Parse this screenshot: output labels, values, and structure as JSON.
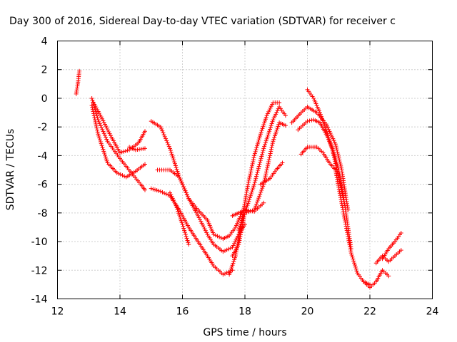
{
  "chart_data": {
    "type": "scatter",
    "title": "Day 300 of 2016, Sidereal Day-to-day VTEC variation (SDTVAR) for receiver c",
    "xlabel": "GPS time / hours",
    "ylabel": "SDTVAR / TECUs",
    "xlim": [
      12,
      24
    ],
    "ylim": [
      -14,
      4
    ],
    "xticks": [
      "12",
      "14",
      "16",
      "18",
      "20",
      "22",
      "24"
    ],
    "yticks": [
      "4",
      "2",
      "0",
      "-2",
      "-4",
      "-6",
      "-8",
      "-10",
      "-12",
      "-14"
    ],
    "grid": true,
    "marker": "plus",
    "color": "#ff0000",
    "series": [
      {
        "x": [
          12.6,
          12.65,
          12.7
        ],
        "y": [
          0.3,
          1.0,
          1.9
        ]
      },
      {
        "x": [
          13.1,
          13.3,
          13.6,
          14.0,
          14.4,
          14.7,
          14.8
        ],
        "y": [
          0.0,
          -1.5,
          -3.0,
          -4.2,
          -5.3,
          -6.1,
          -6.4
        ]
      },
      {
        "x": [
          13.1,
          13.3,
          13.6,
          13.9,
          14.2,
          14.5,
          14.8
        ],
        "y": [
          -0.5,
          -2.5,
          -4.5,
          -5.2,
          -5.5,
          -5.1,
          -4.6
        ]
      },
      {
        "x": [
          13.15,
          13.4,
          13.7,
          14.0,
          14.3,
          14.6,
          14.8
        ],
        "y": [
          -0.3,
          -1.3,
          -2.6,
          -3.8,
          -3.6,
          -3.1,
          -2.3
        ]
      },
      {
        "x": [
          14.3,
          14.5,
          14.8
        ],
        "y": [
          -3.4,
          -3.6,
          -3.5
        ]
      },
      {
        "x": [
          15.0,
          15.3,
          15.6,
          15.9,
          16.2,
          16.5,
          16.8,
          17.0,
          17.3,
          17.5,
          17.7,
          17.9
        ],
        "y": [
          -1.6,
          -2.0,
          -3.5,
          -5.5,
          -7.0,
          -7.8,
          -8.5,
          -9.5,
          -9.8,
          -9.6,
          -9.0,
          -8.0
        ]
      },
      {
        "x": [
          15.2,
          15.6,
          15.9,
          16.2,
          16.5,
          16.8,
          17.0,
          17.3,
          17.6,
          17.8,
          18.0
        ],
        "y": [
          -5.0,
          -5.0,
          -5.5,
          -7.0,
          -8.2,
          -9.5,
          -10.2,
          -10.7,
          -10.4,
          -9.5,
          -8.8
        ]
      },
      {
        "x": [
          15.0,
          15.3,
          15.6,
          15.9,
          16.2,
          16.5,
          16.8,
          17.0,
          17.3,
          17.6
        ],
        "y": [
          -6.3,
          -6.5,
          -6.8,
          -7.8,
          -9.0,
          -10.0,
          -11.0,
          -11.7,
          -12.3,
          -12.0
        ]
      },
      {
        "x": [
          15.6,
          15.8,
          16.0,
          16.2
        ],
        "y": [
          -6.6,
          -7.5,
          -8.8,
          -10.2
        ]
      },
      {
        "x": [
          17.5,
          17.7,
          17.9,
          18.1,
          18.3,
          18.5,
          18.7,
          18.9,
          19.1
        ],
        "y": [
          -12.3,
          -11.0,
          -8.5,
          -6.0,
          -4.0,
          -2.5,
          -1.2,
          -0.3,
          -0.3
        ]
      },
      {
        "x": [
          17.6,
          17.8,
          18.0,
          18.3,
          18.6,
          18.9,
          19.1,
          19.3
        ],
        "y": [
          -11.0,
          -10.2,
          -8.0,
          -6.0,
          -3.5,
          -1.5,
          -0.6,
          -1.2
        ]
      },
      {
        "x": [
          17.8,
          18.0,
          18.3,
          18.6,
          18.9,
          19.1,
          19.3
        ],
        "y": [
          -9.2,
          -8.0,
          -7.8,
          -6.0,
          -3.0,
          -1.7,
          -1.9
        ]
      },
      {
        "x": [
          17.6,
          17.8,
          18.0,
          18.3,
          18.6
        ],
        "y": [
          -8.2,
          -8.0,
          -7.8,
          -7.9,
          -7.3
        ]
      },
      {
        "x": [
          18.5,
          18.8,
          19.0,
          19.2
        ],
        "y": [
          -6.0,
          -5.6,
          -5.0,
          -4.5
        ]
      },
      {
        "x": [
          19.5,
          19.8,
          20.0,
          20.3,
          20.6,
          20.9,
          21.1,
          21.3
        ],
        "y": [
          -1.7,
          -1.0,
          -0.6,
          -1.0,
          -1.8,
          -3.2,
          -5.0,
          -7.8
        ]
      },
      {
        "x": [
          19.7,
          20.0,
          20.2,
          20.4,
          20.6,
          20.8,
          21.0,
          21.2,
          21.4
        ],
        "y": [
          -2.2,
          -1.6,
          -1.5,
          -1.7,
          -2.5,
          -3.5,
          -5.0,
          -7.5,
          -10.5
        ]
      },
      {
        "x": [
          19.8,
          20.0,
          20.3,
          20.5,
          20.7,
          20.9,
          21.0,
          21.2,
          21.4,
          21.6,
          21.8,
          22.0
        ],
        "y": [
          -3.9,
          -3.4,
          -3.4,
          -3.8,
          -4.5,
          -5.0,
          -6.2,
          -8.5,
          -10.8,
          -12.2,
          -12.8,
          -13.0
        ]
      },
      {
        "x": [
          20.0,
          20.2,
          20.4,
          20.6,
          20.8,
          21.0,
          21.2
        ],
        "y": [
          0.6,
          0.0,
          -1.0,
          -2.2,
          -3.6,
          -5.5,
          -7.5
        ]
      },
      {
        "x": [
          21.8,
          22.0,
          22.2,
          22.4,
          22.6
        ],
        "y": [
          -12.8,
          -13.2,
          -12.8,
          -12.0,
          -12.4
        ]
      },
      {
        "x": [
          22.2,
          22.4,
          22.6,
          22.8,
          23.0
        ],
        "y": [
          -11.5,
          -11.0,
          -11.4,
          -11.0,
          -10.6
        ]
      },
      {
        "x": [
          22.4,
          22.6,
          22.8,
          23.0
        ],
        "y": [
          -11.2,
          -10.5,
          -10.0,
          -9.4
        ]
      }
    ]
  }
}
